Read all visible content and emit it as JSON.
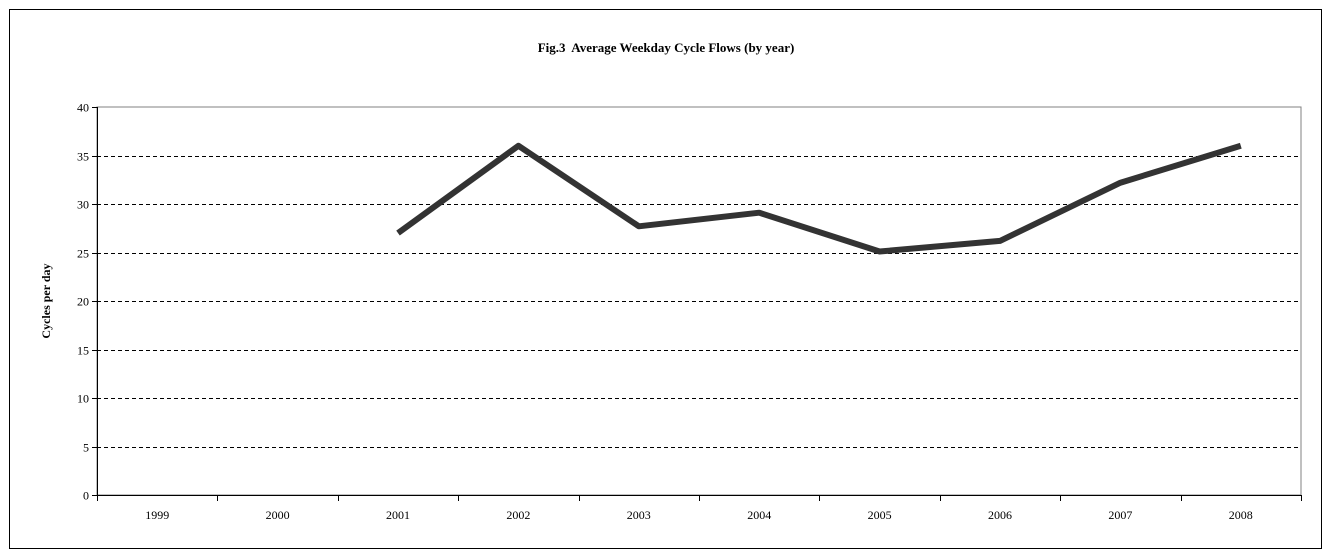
{
  "chart_data": {
    "type": "line",
    "title": "Fig.3  Average Weekday Cycle Flows (by year)",
    "xlabel": "",
    "ylabel": "Cycles per day",
    "categories": [
      "1999",
      "2000",
      "2001",
      "2002",
      "2003",
      "2004",
      "2005",
      "2006",
      "2007",
      "2008"
    ],
    "series": [
      {
        "values": [
          null,
          null,
          27,
          36,
          27.7,
          29.1,
          25.1,
          26.2,
          32.2,
          36
        ],
        "color": "#333333"
      }
    ],
    "ylim": [
      0,
      40
    ],
    "yticks": [
      "0",
      "5",
      "10",
      "15",
      "20",
      "25",
      "30",
      "35",
      "40"
    ],
    "grid": "horizontal-dashed",
    "legend": "none"
  }
}
